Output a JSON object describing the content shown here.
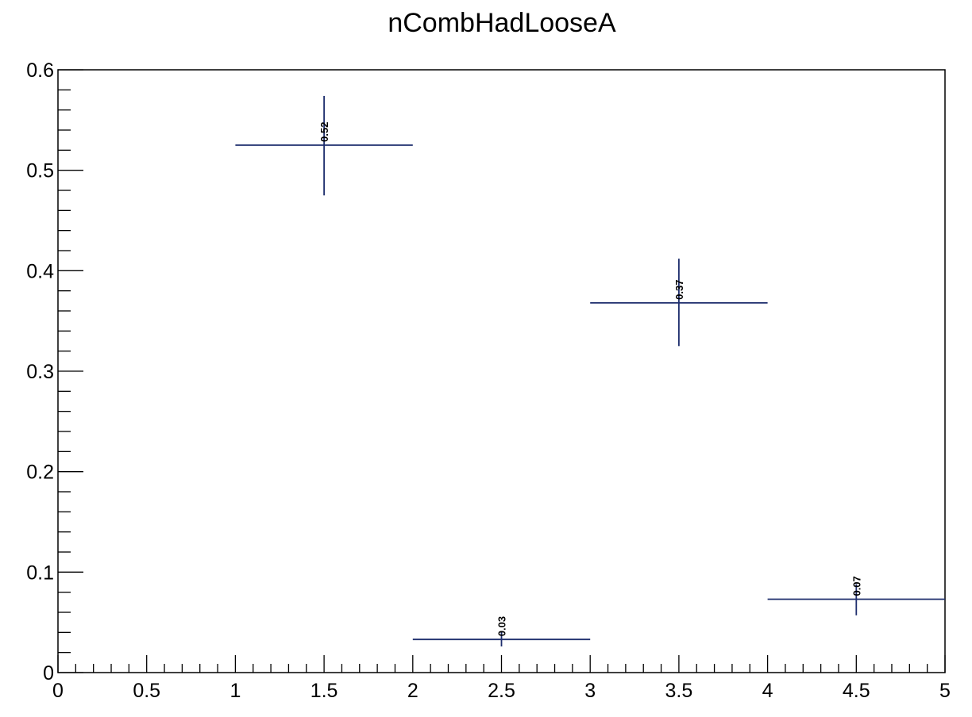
{
  "chart_data": {
    "type": "scatter",
    "title": "nCombHadLooseA",
    "xlabel": "",
    "ylabel": "",
    "xlim": [
      0,
      5
    ],
    "ylim": [
      0,
      0.6
    ],
    "x_ticks": [
      "0",
      "0.5",
      "1",
      "1.5",
      "2",
      "2.5",
      "3",
      "3.5",
      "4",
      "4.5",
      "5"
    ],
    "y_ticks": [
      "0",
      "0.1",
      "0.2",
      "0.3",
      "0.4",
      "0.5",
      "0.6"
    ],
    "grid": false,
    "legend": "none",
    "marker_color": "#1f2f6e",
    "points": [
      {
        "x": 1.5,
        "xlow": 1,
        "xhigh": 2,
        "y": 0.525,
        "ylow": 0.475,
        "yhigh": 0.574,
        "label": "0.52"
      },
      {
        "x": 2.5,
        "xlow": 2,
        "xhigh": 3,
        "y": 0.033,
        "ylow": 0.026,
        "yhigh": 0.041,
        "label": "0.03"
      },
      {
        "x": 3.5,
        "xlow": 3,
        "xhigh": 4,
        "y": 0.368,
        "ylow": 0.325,
        "yhigh": 0.412,
        "label": "0.37"
      },
      {
        "x": 4.5,
        "xlow": 4,
        "xhigh": 5,
        "y": 0.073,
        "ylow": 0.057,
        "yhigh": 0.088,
        "label": "0.07"
      }
    ]
  }
}
